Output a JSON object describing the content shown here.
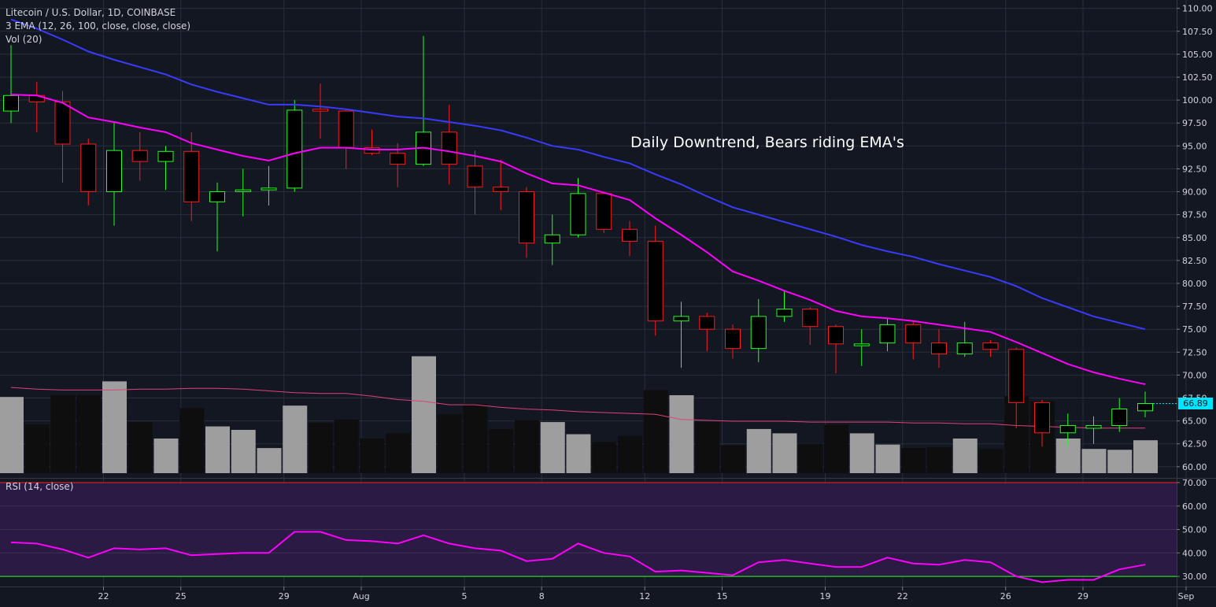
{
  "header": {
    "symbol_line": "Litecoin / U.S. Dollar, 1D, COINBASE",
    "ema_line": "3 EMA (12, 26, 100, close, close, close)",
    "vol_line": "Vol (20)"
  },
  "annotation": "Daily Downtrend, Bears riding EMA's",
  "rsi_label": "RSI (14, close)",
  "last_price_label": "66.89",
  "colors": {
    "background": "#131722",
    "grid": "#2a2e39",
    "up": "#22ff22",
    "down": "#ff1a1a",
    "ema_fast": "#ff00ff",
    "ema_slow": "#3a3aff",
    "vol_ma": "#e0407a",
    "volume_up": "#9e9e9e",
    "volume_down": "#0e0e0e",
    "rsi_line": "#ff00ff",
    "rsi_band": "#2a1a44",
    "rsi_upper": "#ff2020",
    "rsi_lower": "#22ff22",
    "price_tag": "#00e5ff"
  },
  "chart_data": [
    {
      "type": "candlestick",
      "title": "Litecoin / U.S. Dollar, 1D, COINBASE",
      "ylim": [
        59.3,
        110.4
      ],
      "y_ticks": [
        "60.00",
        "62.50",
        "65.00",
        "67.50",
        "70.00",
        "72.50",
        "75.00",
        "77.50",
        "80.00",
        "82.50",
        "85.00",
        "87.50",
        "90.00",
        "92.50",
        "95.00",
        "97.50",
        "100.00",
        "102.50",
        "105.00",
        "107.50",
        "110.00"
      ],
      "x_ticks": [
        {
          "i": 2,
          "label": "22"
        },
        {
          "i": 5,
          "label": "25"
        },
        {
          "i": 9,
          "label": "29"
        },
        {
          "i": 12,
          "label": "Aug"
        },
        {
          "i": 16,
          "label": "5"
        },
        {
          "i": 19,
          "label": "8"
        },
        {
          "i": 23,
          "label": "12"
        },
        {
          "i": 26,
          "label": "15"
        },
        {
          "i": 30,
          "label": "19"
        },
        {
          "i": 33,
          "label": "22"
        },
        {
          "i": 37,
          "label": "26"
        },
        {
          "i": 40,
          "label": "29"
        },
        {
          "i": 44,
          "label": "Sep"
        }
      ],
      "candles": [
        {
          "o": 98.8,
          "h": 106.0,
          "l": 97.5,
          "c": 100.5
        },
        {
          "o": 100.5,
          "h": 102.0,
          "l": 96.5,
          "c": 99.8
        },
        {
          "o": 99.8,
          "h": 101.0,
          "l": 91.0,
          "c": 95.2
        },
        {
          "o": 95.2,
          "h": 95.8,
          "l": 88.5,
          "c": 90.0
        },
        {
          "o": 90.0,
          "h": 97.5,
          "l": 86.3,
          "c": 94.5
        },
        {
          "o": 94.5,
          "h": 96.5,
          "l": 91.2,
          "c": 93.3
        },
        {
          "o": 93.3,
          "h": 95.0,
          "l": 90.2,
          "c": 94.4
        },
        {
          "o": 94.4,
          "h": 96.5,
          "l": 86.8,
          "c": 88.9
        },
        {
          "o": 88.9,
          "h": 91.0,
          "l": 83.5,
          "c": 90.0
        },
        {
          "o": 90.0,
          "h": 92.5,
          "l": 87.3,
          "c": 90.2
        },
        {
          "o": 90.2,
          "h": 92.8,
          "l": 88.5,
          "c": 90.4
        },
        {
          "o": 90.4,
          "h": 100.0,
          "l": 90.0,
          "c": 98.9
        },
        {
          "o": 99.0,
          "h": 101.8,
          "l": 95.8,
          "c": 98.8
        },
        {
          "o": 98.8,
          "h": 99.0,
          "l": 92.5,
          "c": 94.8
        },
        {
          "o": 94.8,
          "h": 96.8,
          "l": 94.0,
          "c": 94.2
        },
        {
          "o": 94.2,
          "h": 95.3,
          "l": 90.5,
          "c": 93.0
        },
        {
          "o": 93.0,
          "h": 107.0,
          "l": 92.8,
          "c": 96.5
        },
        {
          "o": 96.5,
          "h": 99.5,
          "l": 90.8,
          "c": 93.0
        },
        {
          "o": 92.8,
          "h": 94.5,
          "l": 87.5,
          "c": 90.5
        },
        {
          "o": 90.5,
          "h": 93.5,
          "l": 88.0,
          "c": 90.0
        },
        {
          "o": 90.0,
          "h": 90.5,
          "l": 82.8,
          "c": 84.4
        },
        {
          "o": 84.4,
          "h": 87.5,
          "l": 82.0,
          "c": 85.3
        },
        {
          "o": 85.3,
          "h": 91.5,
          "l": 85.0,
          "c": 89.8
        },
        {
          "o": 89.8,
          "h": 90.0,
          "l": 85.5,
          "c": 85.9
        },
        {
          "o": 85.9,
          "h": 86.8,
          "l": 83.0,
          "c": 84.6
        },
        {
          "o": 84.6,
          "h": 86.3,
          "l": 74.3,
          "c": 75.9
        },
        {
          "o": 75.9,
          "h": 78.0,
          "l": 70.8,
          "c": 76.4
        },
        {
          "o": 76.4,
          "h": 76.8,
          "l": 72.6,
          "c": 75.0
        },
        {
          "o": 75.0,
          "h": 75.5,
          "l": 71.8,
          "c": 72.9
        },
        {
          "o": 72.9,
          "h": 78.3,
          "l": 71.4,
          "c": 76.4
        },
        {
          "o": 76.4,
          "h": 79.2,
          "l": 75.8,
          "c": 77.2
        },
        {
          "o": 77.2,
          "h": 77.4,
          "l": 73.3,
          "c": 75.3
        },
        {
          "o": 75.3,
          "h": 75.5,
          "l": 70.2,
          "c": 73.4
        },
        {
          "o": 73.2,
          "h": 75.0,
          "l": 71.0,
          "c": 73.4
        },
        {
          "o": 73.5,
          "h": 76.2,
          "l": 72.6,
          "c": 75.5
        },
        {
          "o": 75.5,
          "h": 75.8,
          "l": 71.7,
          "c": 73.5
        },
        {
          "o": 73.5,
          "h": 75.0,
          "l": 70.8,
          "c": 72.3
        },
        {
          "o": 72.3,
          "h": 75.8,
          "l": 72.0,
          "c": 73.5
        },
        {
          "o": 73.5,
          "h": 73.8,
          "l": 72.0,
          "c": 72.8
        },
        {
          "o": 72.8,
          "h": 73.0,
          "l": 64.2,
          "c": 67.0
        },
        {
          "o": 67.0,
          "h": 67.3,
          "l": 62.2,
          "c": 63.7
        },
        {
          "o": 63.7,
          "h": 65.8,
          "l": 62.3,
          "c": 64.5
        },
        {
          "o": 64.2,
          "h": 65.5,
          "l": 62.5,
          "c": 64.5
        },
        {
          "o": 64.5,
          "h": 67.5,
          "l": 63.8,
          "c": 66.3
        },
        {
          "o": 66.1,
          "h": 68.2,
          "l": 65.4,
          "c": 66.9
        }
      ],
      "series": [
        {
          "name": "EMA 12",
          "values": [
            100.6,
            100.5,
            99.7,
            98.1,
            97.6,
            97.0,
            96.5,
            95.3,
            94.6,
            93.9,
            93.4,
            94.2,
            94.8,
            94.8,
            94.6,
            94.6,
            94.8,
            94.4,
            93.9,
            93.3,
            92.0,
            90.9,
            90.7,
            89.9,
            89.1,
            87.1,
            85.3,
            83.4,
            81.3,
            80.3,
            79.2,
            78.2,
            77.0,
            76.4,
            76.2,
            75.9,
            75.5,
            75.1,
            74.7,
            73.6,
            72.4,
            71.2,
            70.3,
            69.6,
            69.0
          ]
        },
        {
          "name": "EMA 26",
          "values": [
            108.8,
            107.8,
            106.6,
            105.3,
            104.4,
            103.6,
            102.8,
            101.7,
            100.9,
            100.2,
            99.5,
            99.5,
            99.3,
            99.0,
            98.6,
            98.2,
            98.0,
            97.6,
            97.2,
            96.7,
            95.9,
            95.0,
            94.6,
            93.8,
            93.1,
            91.9,
            90.8,
            89.5,
            88.3,
            87.5,
            86.7,
            85.9,
            85.1,
            84.2,
            83.5,
            82.9,
            82.1,
            81.4,
            80.7,
            79.7,
            78.4,
            77.4,
            76.4,
            75.7,
            75.0
          ]
        }
      ]
    },
    {
      "type": "bar",
      "title": "Vol (20)",
      "values": [
        0.88,
        0.56,
        0.9,
        0.9,
        1.06,
        0.59,
        0.4,
        0.75,
        0.54,
        0.5,
        0.29,
        0.78,
        0.58,
        0.62,
        0.4,
        0.46,
        1.35,
        0.68,
        0.8,
        0.51,
        0.61,
        0.59,
        0.45,
        0.36,
        0.43,
        0.96,
        0.9,
        0.59,
        0.32,
        0.51,
        0.46,
        0.34,
        0.56,
        0.46,
        0.33,
        0.29,
        0.3,
        0.4,
        0.28,
        0.89,
        0.83,
        0.4,
        0.28,
        0.27,
        0.38
      ],
      "colors": [
        "u",
        "d",
        "d",
        "d",
        "u",
        "d",
        "u",
        "d",
        "u",
        "u",
        "u",
        "u",
        "d",
        "d",
        "d",
        "d",
        "u",
        "d",
        "d",
        "d",
        "d",
        "u",
        "u",
        "d",
        "d",
        "d",
        "u",
        "d",
        "d",
        "u",
        "u",
        "d",
        "d",
        "u",
        "u",
        "d",
        "d",
        "u",
        "d",
        "d",
        "d",
        "u",
        "u",
        "u",
        "u"
      ],
      "series": [
        {
          "name": "Volume MA",
          "values": [
            0.99,
            0.97,
            0.96,
            0.96,
            0.96,
            0.97,
            0.97,
            0.98,
            0.98,
            0.97,
            0.95,
            0.93,
            0.92,
            0.92,
            0.89,
            0.85,
            0.83,
            0.79,
            0.79,
            0.76,
            0.74,
            0.73,
            0.71,
            0.7,
            0.69,
            0.68,
            0.62,
            0.61,
            0.6,
            0.6,
            0.6,
            0.59,
            0.59,
            0.59,
            0.59,
            0.58,
            0.58,
            0.57,
            0.57,
            0.55,
            0.54,
            0.53,
            0.52,
            0.52,
            0.52
          ]
        }
      ]
    },
    {
      "type": "line",
      "title": "RSI (14, close)",
      "ylim": [
        26,
        71
      ],
      "y_ticks": [
        "30.00",
        "40.00",
        "50.00",
        "60.00",
        "70.00"
      ],
      "bands": [
        30,
        70
      ],
      "series": [
        {
          "name": "RSI",
          "values": [
            44.5,
            44.0,
            41.5,
            38.0,
            42.0,
            41.5,
            42.0,
            39.0,
            39.5,
            40.0,
            40.0,
            49.0,
            49.0,
            45.5,
            45.0,
            44.0,
            47.5,
            44.0,
            42.0,
            41.0,
            36.5,
            37.5,
            44.0,
            40.0,
            38.5,
            32.0,
            32.5,
            31.5,
            30.5,
            36.0,
            37.0,
            35.5,
            34.0,
            34.0,
            38.0,
            35.5,
            35.0,
            37.0,
            36.0,
            30.0,
            27.5,
            28.5,
            28.5,
            33.0,
            35.0
          ]
        }
      ]
    }
  ]
}
